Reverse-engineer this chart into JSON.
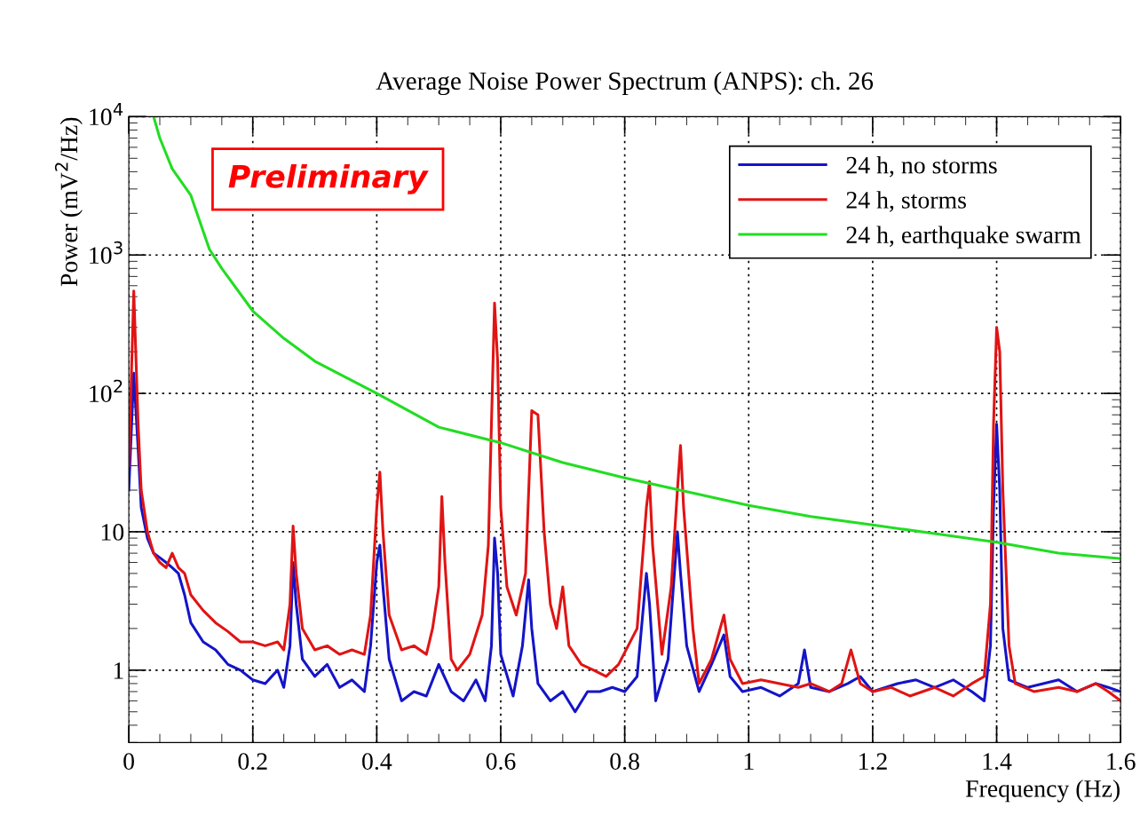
{
  "chart_data": {
    "type": "line",
    "title": "Average Noise Power Spectrum (ANPS): ch. 26",
    "xlabel": "Frequency (Hz)",
    "ylabel": "Power (mV$^{2}$/Hz)",
    "annotations": [
      "Preliminary"
    ],
    "log": true,
    "grid": true,
    "legend": "top right",
    "marker": "none",
    "line_style": "solid",
    "xlim": [
      0,
      1.6
    ],
    "xticks": [
      0,
      0.2,
      0.4,
      0.6,
      0.8,
      1,
      1.2,
      1.4,
      1.6
    ],
    "ylim": [
      0.3,
      10000
    ],
    "yticks": [
      1,
      10,
      {
        "value": 100,
        "label": "10$^{2}$"
      },
      {
        "value": 1000,
        "label": "10$^{3}$"
      },
      {
        "value": 10000,
        "label": "10$^{4}$"
      }
    ],
    "series": [
      {
        "name": "24 h, no storms",
        "color": "#1414c8",
        "x": [
          0.0,
          0.008,
          0.015,
          0.02,
          0.03,
          0.04,
          0.05,
          0.06,
          0.07,
          0.08,
          0.09,
          0.1,
          0.12,
          0.14,
          0.16,
          0.18,
          0.2,
          0.22,
          0.24,
          0.25,
          0.26,
          0.265,
          0.27,
          0.28,
          0.3,
          0.32,
          0.34,
          0.36,
          0.38,
          0.39,
          0.4,
          0.405,
          0.41,
          0.42,
          0.44,
          0.46,
          0.48,
          0.5,
          0.52,
          0.54,
          0.56,
          0.575,
          0.585,
          0.59,
          0.595,
          0.6,
          0.62,
          0.635,
          0.645,
          0.65,
          0.66,
          0.68,
          0.7,
          0.72,
          0.74,
          0.76,
          0.78,
          0.8,
          0.82,
          0.835,
          0.84,
          0.85,
          0.87,
          0.885,
          0.89,
          0.9,
          0.92,
          0.94,
          0.96,
          0.97,
          0.99,
          1.02,
          1.05,
          1.08,
          1.09,
          1.1,
          1.13,
          1.16,
          1.18,
          1.2,
          1.24,
          1.27,
          1.3,
          1.33,
          1.36,
          1.38,
          1.39,
          1.395,
          1.4,
          1.405,
          1.41,
          1.42,
          1.45,
          1.5,
          1.53,
          1.56,
          1.58,
          1.6
        ],
        "values": [
          20,
          140,
          40,
          15,
          9,
          7,
          6.5,
          6,
          5.5,
          5,
          3.5,
          2.2,
          1.6,
          1.4,
          1.1,
          1.0,
          0.85,
          0.8,
          1.0,
          0.75,
          1.5,
          6,
          3,
          1.2,
          0.9,
          1.1,
          0.75,
          0.85,
          0.7,
          1.5,
          6,
          8,
          4,
          1.2,
          0.6,
          0.7,
          0.65,
          1.1,
          0.7,
          0.6,
          0.85,
          0.6,
          1.5,
          9,
          5,
          1.3,
          0.65,
          1.5,
          4.5,
          2,
          0.8,
          0.6,
          0.7,
          0.5,
          0.7,
          0.7,
          0.75,
          0.7,
          0.9,
          5,
          3,
          0.6,
          1.2,
          10,
          5,
          1.5,
          0.7,
          1.1,
          1.8,
          0.9,
          0.7,
          0.75,
          0.65,
          0.8,
          1.4,
          0.75,
          0.7,
          0.8,
          0.9,
          0.7,
          0.8,
          0.85,
          0.75,
          0.85,
          0.7,
          0.6,
          1.5,
          15,
          60,
          20,
          2,
          0.85,
          0.75,
          0.85,
          0.7,
          0.8,
          0.75,
          0.7
        ]
      },
      {
        "name": "24 h, storms",
        "color": "#e01414",
        "x": [
          0.0,
          0.008,
          0.015,
          0.02,
          0.03,
          0.04,
          0.05,
          0.06,
          0.07,
          0.08,
          0.09,
          0.1,
          0.12,
          0.14,
          0.16,
          0.18,
          0.2,
          0.22,
          0.24,
          0.25,
          0.26,
          0.265,
          0.27,
          0.28,
          0.3,
          0.32,
          0.34,
          0.36,
          0.38,
          0.39,
          0.4,
          0.405,
          0.41,
          0.42,
          0.44,
          0.46,
          0.48,
          0.49,
          0.5,
          0.505,
          0.51,
          0.52,
          0.53,
          0.55,
          0.57,
          0.58,
          0.59,
          0.595,
          0.6,
          0.61,
          0.625,
          0.64,
          0.65,
          0.66,
          0.67,
          0.68,
          0.69,
          0.7,
          0.71,
          0.73,
          0.75,
          0.77,
          0.79,
          0.82,
          0.835,
          0.84,
          0.845,
          0.86,
          0.875,
          0.885,
          0.89,
          0.895,
          0.91,
          0.92,
          0.94,
          0.96,
          0.97,
          0.99,
          1.02,
          1.05,
          1.08,
          1.1,
          1.13,
          1.15,
          1.165,
          1.18,
          1.2,
          1.23,
          1.26,
          1.3,
          1.33,
          1.36,
          1.38,
          1.39,
          1.395,
          1.4,
          1.405,
          1.41,
          1.42,
          1.43,
          1.46,
          1.5,
          1.53,
          1.56,
          1.58,
          1.6
        ],
        "values": [
          30,
          550,
          60,
          20,
          10,
          7,
          6,
          5.5,
          7,
          5.5,
          5,
          3.5,
          2.7,
          2.2,
          1.9,
          1.6,
          1.6,
          1.5,
          1.6,
          1.4,
          3,
          11,
          5,
          2,
          1.4,
          1.5,
          1.3,
          1.4,
          1.3,
          2.5,
          15,
          27,
          10,
          2.5,
          1.4,
          1.5,
          1.3,
          2,
          4,
          18,
          6,
          1.2,
          1.0,
          1.3,
          2.5,
          8,
          450,
          170,
          15,
          4,
          2.5,
          5,
          75,
          70,
          10,
          3,
          2,
          4,
          1.5,
          1.1,
          1.0,
          0.9,
          1.1,
          2,
          15,
          23,
          8,
          1.3,
          4,
          20,
          42,
          15,
          2,
          0.8,
          1.2,
          2.5,
          1.2,
          0.8,
          0.85,
          0.8,
          0.75,
          0.8,
          0.7,
          0.8,
          1.4,
          0.8,
          0.7,
          0.75,
          0.65,
          0.75,
          0.65,
          0.8,
          0.9,
          3,
          60,
          300,
          200,
          20,
          1.5,
          0.8,
          0.7,
          0.75,
          0.7,
          0.8,
          0.7,
          0.6
        ]
      },
      {
        "name": "24 h, earthquake swarm",
        "color": "#22dd22",
        "x": [
          0.04,
          0.05,
          0.07,
          0.1,
          0.13,
          0.15,
          0.2,
          0.25,
          0.3,
          0.4,
          0.5,
          0.6,
          0.7,
          0.8,
          0.9,
          1.0,
          1.1,
          1.2,
          1.3,
          1.4,
          1.5,
          1.6
        ],
        "values": [
          10000,
          7000,
          4200,
          2700,
          1100,
          800,
          394,
          250,
          171,
          100,
          57,
          44,
          31.6,
          24.5,
          19.5,
          15.5,
          12.9,
          11.2,
          9.7,
          8.4,
          7.0,
          6.4
        ]
      }
    ]
  }
}
